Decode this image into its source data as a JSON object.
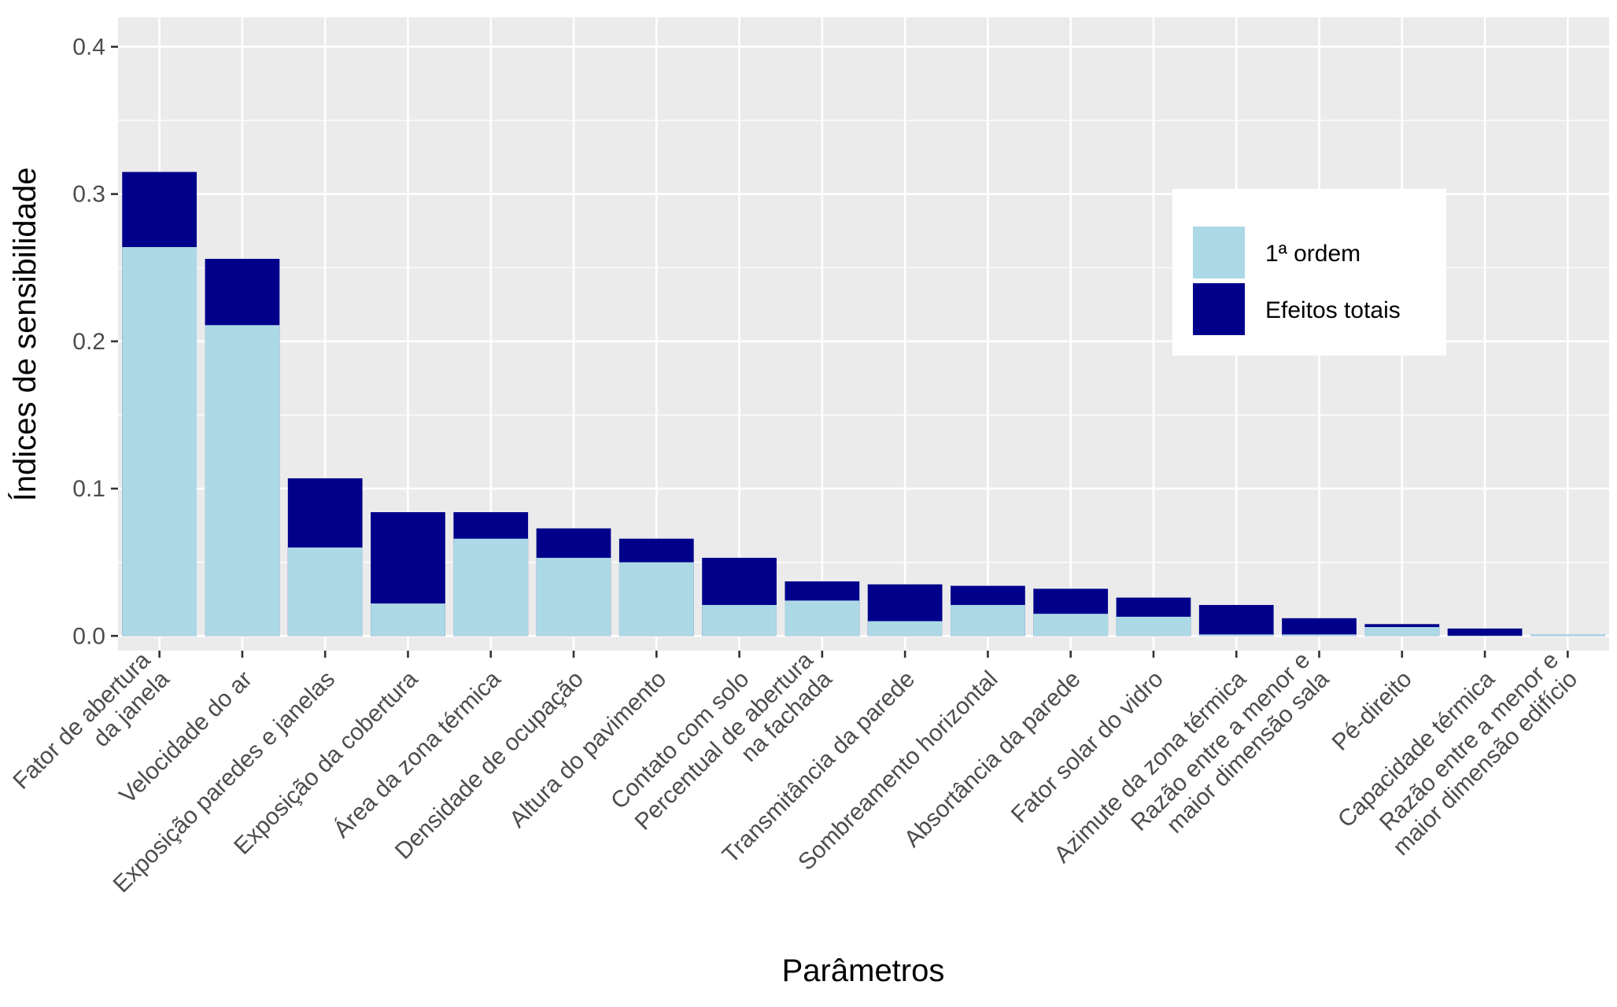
{
  "chart_data": {
    "type": "bar",
    "stacking": "overlay",
    "xlabel": "Parâmetros",
    "ylabel": "Índices de sensibilidade",
    "ylim": [
      -0.01,
      0.42
    ],
    "yticks": [
      "0.0",
      "0.1",
      "0.2",
      "0.3",
      "0.4"
    ],
    "ytick_values": [
      0.0,
      0.1,
      0.2,
      0.3,
      0.4
    ],
    "grid": true,
    "legend_position": "top-right",
    "categories": [
      [
        "Fator de abertura",
        "da janela"
      ],
      [
        "Velocidade do ar"
      ],
      [
        "Exposição paredes e janelas"
      ],
      [
        "Exposição da cobertura"
      ],
      [
        "Área da zona térmica"
      ],
      [
        "Densidade de ocupação"
      ],
      [
        "Altura do pavimento"
      ],
      [
        "Contato com solo"
      ],
      [
        "Percentual de abertura",
        "na fachada"
      ],
      [
        "Transmitância da parede"
      ],
      [
        "Sombreamento horizontal"
      ],
      [
        "Absortância da parede"
      ],
      [
        "Fator solar do vidro"
      ],
      [
        "Azimute da zona térmica"
      ],
      [
        "Razão entre a menor e",
        "maior dimensão sala"
      ],
      [
        "Pé-direito"
      ],
      [
        "Capacidade térmica"
      ],
      [
        "Razão entre a menor e",
        "maior dimensão edifício"
      ]
    ],
    "series": [
      {
        "name": "Efeitos totais",
        "color": "#00008b",
        "values": [
          0.315,
          0.256,
          0.107,
          0.084,
          0.084,
          0.073,
          0.066,
          0.053,
          0.037,
          0.035,
          0.034,
          0.032,
          0.026,
          0.021,
          0.012,
          0.008,
          0.005,
          0.001
        ]
      },
      {
        "name": "1ª ordem",
        "color": "#add8e6",
        "values": [
          0.264,
          0.211,
          0.06,
          0.022,
          0.066,
          0.053,
          0.05,
          0.021,
          0.024,
          0.01,
          0.021,
          0.015,
          0.013,
          0.001,
          0.001,
          0.006,
          0.0,
          0.001
        ]
      }
    ],
    "legend": [
      {
        "label": "1ª ordem",
        "color": "#add8e6"
      },
      {
        "label": "Efeitos totais",
        "color": "#00008b"
      }
    ]
  },
  "colors": {
    "panel_background": "#ebebeb",
    "grid_major": "#ffffff",
    "tick_text": "#4d4d4d"
  }
}
